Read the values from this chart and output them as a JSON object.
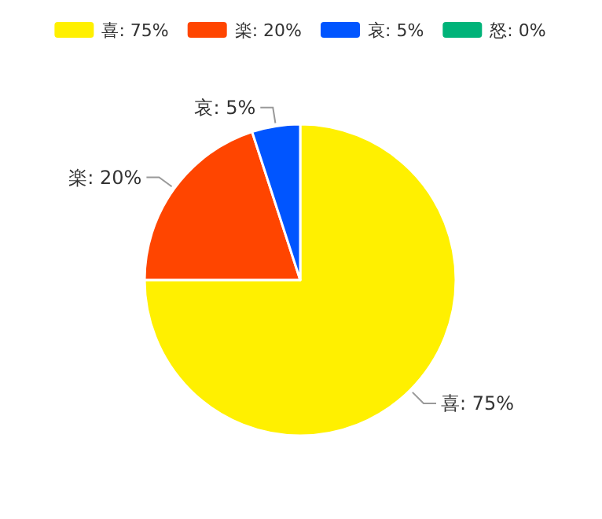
{
  "chart_data": {
    "type": "pie",
    "categories": [
      "喜",
      "楽",
      "哀",
      "怒"
    ],
    "values": [
      75,
      20,
      5,
      0
    ],
    "value_labels": [
      "75%",
      "20%",
      "5%",
      "0%"
    ],
    "colors": [
      "#fff000",
      "#ff4500",
      "#0055ff",
      "#00b379"
    ],
    "legend": "top"
  }
}
